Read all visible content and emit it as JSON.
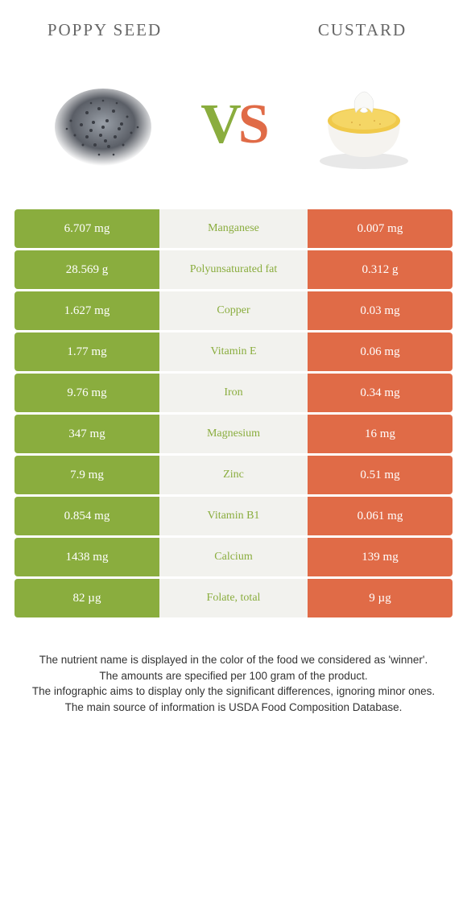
{
  "colors": {
    "left": "#8aad3e",
    "right": "#e06b47",
    "mid_bg": "#f2f2ee",
    "left_nutrient_text": "#8aad3e",
    "right_nutrient_text": "#e06b47"
  },
  "header": {
    "left_title": "POPPY SEED",
    "right_title": "CUSTARD",
    "title_fontsize": 21
  },
  "vs": {
    "v": "V",
    "s": "S"
  },
  "rows": [
    {
      "left": "6.707 mg",
      "nutrient": "Manganese",
      "right": "0.007 mg",
      "winner": "left"
    },
    {
      "left": "28.569 g",
      "nutrient": "Polyunsaturated fat",
      "right": "0.312 g",
      "winner": "left"
    },
    {
      "left": "1.627 mg",
      "nutrient": "Copper",
      "right": "0.03 mg",
      "winner": "left"
    },
    {
      "left": "1.77 mg",
      "nutrient": "Vitamin E",
      "right": "0.06 mg",
      "winner": "left"
    },
    {
      "left": "9.76 mg",
      "nutrient": "Iron",
      "right": "0.34 mg",
      "winner": "left"
    },
    {
      "left": "347 mg",
      "nutrient": "Magnesium",
      "right": "16 mg",
      "winner": "left"
    },
    {
      "left": "7.9 mg",
      "nutrient": "Zinc",
      "right": "0.51 mg",
      "winner": "left"
    },
    {
      "left": "0.854 mg",
      "nutrient": "Vitamin B1",
      "right": "0.061 mg",
      "winner": "left"
    },
    {
      "left": "1438 mg",
      "nutrient": "Calcium",
      "right": "139 mg",
      "winner": "left"
    },
    {
      "left": "82 µg",
      "nutrient": "Folate, total",
      "right": "9 µg",
      "winner": "left"
    }
  ],
  "footer": {
    "line1": "The nutrient name is displayed in the color of the food we considered as 'winner'.",
    "line2": "The amounts are specified per 100 gram of the product.",
    "line3": "The infographic aims to display only the significant differences, ignoring minor ones.",
    "line4": "The main source of information is USDA Food Composition Database."
  }
}
